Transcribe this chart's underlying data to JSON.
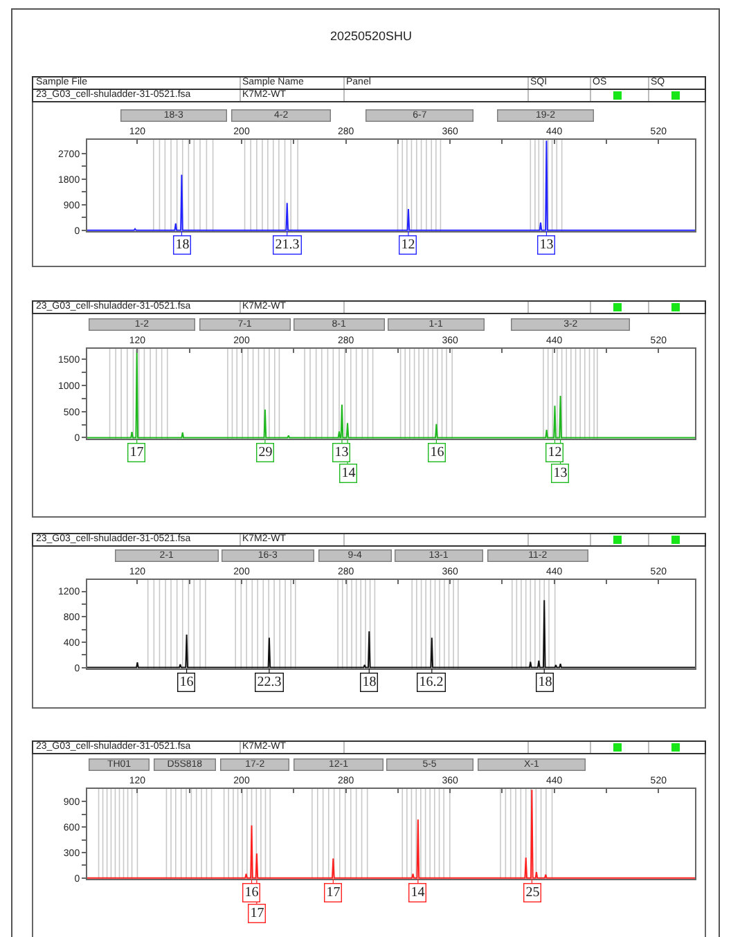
{
  "chart_data": [
    {
      "type": "line",
      "title": "20250520SHU",
      "annotations": [
        "23_G03_cell-shuladder-31-0521.fsa",
        "K7M2-WT",
        "18-3",
        "4-2",
        "6-7",
        "19-2",
        "Sample File",
        "Sample Name",
        "Panel",
        "SQI",
        "OS",
        "SQ",
        {
          "text": "18",
          "x": 154.0
        },
        {
          "text": "21.3",
          "x": 234.9
        },
        {
          "text": "12",
          "x": 328.0
        },
        {
          "text": "13",
          "x": 434.0
        }
      ],
      "xlim": [
        81.5,
        548
      ],
      "xticks": [
        120,
        {
          "value": 160,
          "label": null
        },
        200,
        {
          "value": 240,
          "label": null
        },
        280,
        {
          "value": 320,
          "label": null
        },
        360,
        {
          "value": 400,
          "label": null
        },
        440,
        {
          "value": 480,
          "label": null
        },
        520
      ],
      "ylim": [
        -30,
        3180
      ],
      "yticks": [
        0,
        {
          "value": 450,
          "label": null
        },
        900,
        {
          "value": 1350,
          "label": null
        },
        1800,
        {
          "value": 2250,
          "label": null
        },
        2700
      ],
      "series": [
        {
          "color": "#2424ff",
          "x": [
            81.5,
            117.5,
            118.2,
            119,
            148.7,
            149.4,
            150.1,
            153.3,
            154.0,
            154.7,
            234.2,
            234.9,
            235.6,
            327.3,
            328.0,
            328.7,
            428.8,
            429.5,
            430.2,
            433.3,
            434.0,
            434.7,
            548
          ],
          "values": [
            0,
            0,
            50,
            0,
            0,
            240,
            0,
            0,
            1950,
            0,
            0,
            960,
            0,
            0,
            750,
            0,
            0,
            270,
            0,
            0,
            3150,
            0,
            0
          ]
        }
      ],
      "ref_lines": [
        {
          "axis": "x",
          "value": 132.4,
          "color": "#c8c8c8"
        },
        {
          "axis": "x",
          "value": 137,
          "color": "#c8c8c8"
        },
        {
          "axis": "x",
          "value": 141.2,
          "color": "#c8c8c8"
        },
        {
          "axis": "x",
          "value": 145.8,
          "color": "#c8c8c8"
        },
        {
          "axis": "x",
          "value": 150.4,
          "color": "#c8c8c8"
        },
        {
          "axis": "x",
          "value": 154.7,
          "color": "#c8c8c8"
        },
        {
          "axis": "x",
          "value": 159.3,
          "color": "#c8c8c8"
        },
        {
          "axis": "x",
          "value": 163.5,
          "color": "#c8c8c8"
        },
        {
          "axis": "x",
          "value": 168.1,
          "color": "#c8c8c8"
        },
        {
          "axis": "x",
          "value": 173.1,
          "color": "#c8c8c8"
        },
        {
          "axis": "x",
          "value": 178,
          "color": "#c8c8c8"
        },
        {
          "axis": "x",
          "value": 202.4,
          "color": "#c8c8c8"
        },
        {
          "axis": "x",
          "value": 207,
          "color": "#c8c8c8"
        },
        {
          "axis": "x",
          "value": 211.6,
          "color": "#c8c8c8"
        },
        {
          "axis": "x",
          "value": 215.9,
          "color": "#c8c8c8"
        },
        {
          "axis": "x",
          "value": 220.1,
          "color": "#c8c8c8"
        },
        {
          "axis": "x",
          "value": 224.3,
          "color": "#c8c8c8"
        },
        {
          "axis": "x",
          "value": 228.6,
          "color": "#c8c8c8"
        },
        {
          "axis": "x",
          "value": 233.2,
          "color": "#c8c8c8"
        },
        {
          "axis": "x",
          "value": 237.8,
          "color": "#c8c8c8"
        },
        {
          "axis": "x",
          "value": 243.1,
          "color": "#c8c8c8"
        },
        {
          "axis": "x",
          "value": 319.8,
          "color": "#c8c8c8"
        },
        {
          "axis": "x",
          "value": 323.4,
          "color": "#c8c8c8"
        },
        {
          "axis": "x",
          "value": 326.9,
          "color": "#c8c8c8"
        },
        {
          "axis": "x",
          "value": 330.4,
          "color": "#c8c8c8"
        },
        {
          "axis": "x",
          "value": 334.3,
          "color": "#c8c8c8"
        },
        {
          "axis": "x",
          "value": 337.9,
          "color": "#c8c8c8"
        },
        {
          "axis": "x",
          "value": 341.8,
          "color": "#c8c8c8"
        },
        {
          "axis": "x",
          "value": 345.7,
          "color": "#c8c8c8"
        },
        {
          "axis": "x",
          "value": 349.2,
          "color": "#c8c8c8"
        },
        {
          "axis": "x",
          "value": 352.7,
          "color": "#c8c8c8"
        },
        {
          "axis": "x",
          "value": 421.7,
          "color": "#c8c8c8"
        },
        {
          "axis": "x",
          "value": 425.2,
          "color": "#c8c8c8"
        },
        {
          "axis": "x",
          "value": 428.1,
          "color": "#c8c8c8"
        },
        {
          "axis": "x",
          "value": 431.6,
          "color": "#c8c8c8"
        },
        {
          "axis": "x",
          "value": 435.2,
          "color": "#c8c8c8"
        },
        {
          "axis": "x",
          "value": 438.3,
          "color": "#c8c8c8"
        },
        {
          "axis": "x",
          "value": 441.9,
          "color": "#c8c8c8"
        },
        {
          "axis": "x",
          "value": 445.8,
          "color": "#c8c8c8"
        }
      ]
    },
    {
      "type": "line",
      "annotations": [
        "23_G03_cell-shuladder-31-0521.fsa",
        "K7M2-WT",
        "1-2",
        "7-1",
        "8-1",
        "1-1",
        "3-2",
        {
          "text": "17",
          "x": 119.6
        },
        {
          "text": "29",
          "x": 218.0
        },
        {
          "text": "13",
          "x": 277.0
        },
        {
          "text": "14",
          "x": 281.3
        },
        {
          "text": "16",
          "x": 349.5
        },
        {
          "text": "12",
          "x": 440.4
        },
        {
          "text": "13",
          "x": 444.7
        }
      ],
      "xlim": [
        81.5,
        548
      ],
      "xticks": [
        120,
        {
          "value": 160,
          "label": null
        },
        200,
        {
          "value": 240,
          "label": null
        },
        280,
        {
          "value": 320,
          "label": null
        },
        360,
        {
          "value": 400,
          "label": null
        },
        440,
        {
          "value": 480,
          "label": null
        },
        520
      ],
      "ylim": [
        -20,
        1700
      ],
      "yticks": [
        0,
        {
          "value": 250,
          "label": null
        },
        500,
        {
          "value": 750,
          "label": null
        },
        1000,
        {
          "value": 1250,
          "label": null
        },
        1500
      ],
      "series": [
        {
          "color": "#1fb81f",
          "x": [
            81.5,
            115.1,
            115.8,
            116.5,
            118.9,
            119.6,
            120.3,
            154.0,
            154.7,
            155.4,
            217.3,
            218.0,
            218.7,
            235.3,
            236.0,
            236.7,
            274.2,
            274.9,
            275.6,
            276.3,
            277.0,
            277.7,
            280.6,
            281.3,
            282.0,
            348.8,
            349.5,
            350.2,
            433.4,
            434.1,
            434.8,
            439.7,
            440.4,
            441.1,
            444.0,
            444.7,
            445.4,
            548
          ],
          "values": [
            0,
            0,
            110,
            0,
            0,
            1680,
            0,
            0,
            100,
            0,
            0,
            540,
            0,
            0,
            40,
            0,
            0,
            120,
            0,
            0,
            630,
            0,
            0,
            280,
            0,
            0,
            260,
            0,
            0,
            150,
            0,
            0,
            610,
            0,
            0,
            800,
            0,
            0
          ]
        }
      ],
      "ref_lines": [
        {
          "axis": "x",
          "value": 98.8,
          "color": "#c8c8c8"
        },
        {
          "axis": "x",
          "value": 103.4,
          "color": "#c8c8c8"
        },
        {
          "axis": "x",
          "value": 107.6,
          "color": "#c8c8c8"
        },
        {
          "axis": "x",
          "value": 112.2,
          "color": "#c8c8c8"
        },
        {
          "axis": "x",
          "value": 116.8,
          "color": "#c8c8c8"
        },
        {
          "axis": "x",
          "value": 121.1,
          "color": "#c8c8c8"
        },
        {
          "axis": "x",
          "value": 125.3,
          "color": "#c8c8c8"
        },
        {
          "axis": "x",
          "value": 129.9,
          "color": "#c8c8c8"
        },
        {
          "axis": "x",
          "value": 134.5,
          "color": "#c8c8c8"
        },
        {
          "axis": "x",
          "value": 138.7,
          "color": "#c8c8c8"
        },
        {
          "axis": "x",
          "value": 143,
          "color": "#c8c8c8"
        },
        {
          "axis": "x",
          "value": 189.3,
          "color": "#c8c8c8"
        },
        {
          "axis": "x",
          "value": 192.8,
          "color": "#c8c8c8"
        },
        {
          "axis": "x",
          "value": 196.4,
          "color": "#c8c8c8"
        },
        {
          "axis": "x",
          "value": 200.6,
          "color": "#c8c8c8"
        },
        {
          "axis": "x",
          "value": 204.9,
          "color": "#c8c8c8"
        },
        {
          "axis": "x",
          "value": 208.8,
          "color": "#c8c8c8"
        },
        {
          "axis": "x",
          "value": 213,
          "color": "#c8c8c8"
        },
        {
          "axis": "x",
          "value": 217.3,
          "color": "#c8c8c8"
        },
        {
          "axis": "x",
          "value": 221.2,
          "color": "#c8c8c8"
        },
        {
          "axis": "x",
          "value": 225.4,
          "color": "#c8c8c8"
        },
        {
          "axis": "x",
          "value": 228.9,
          "color": "#c8c8c8"
        },
        {
          "axis": "x",
          "value": 248.4,
          "color": "#c8c8c8"
        },
        {
          "axis": "x",
          "value": 252.6,
          "color": "#c8c8c8"
        },
        {
          "axis": "x",
          "value": 257.2,
          "color": "#c8c8c8"
        },
        {
          "axis": "x",
          "value": 261.5,
          "color": "#c8c8c8"
        },
        {
          "axis": "x",
          "value": 266.1,
          "color": "#c8c8c8"
        },
        {
          "axis": "x",
          "value": 270.3,
          "color": "#c8c8c8"
        },
        {
          "axis": "x",
          "value": 274.9,
          "color": "#c8c8c8"
        },
        {
          "axis": "x",
          "value": 279.2,
          "color": "#c8c8c8"
        },
        {
          "axis": "x",
          "value": 283.8,
          "color": "#c8c8c8"
        },
        {
          "axis": "x",
          "value": 288,
          "color": "#c8c8c8"
        },
        {
          "axis": "x",
          "value": 292.6,
          "color": "#c8c8c8"
        },
        {
          "axis": "x",
          "value": 296.9,
          "color": "#c8c8c8"
        },
        {
          "axis": "x",
          "value": 300.7,
          "color": "#c8c8c8"
        },
        {
          "axis": "x",
          "value": 322,
          "color": "#c8c8c8"
        },
        {
          "axis": "x",
          "value": 325.5,
          "color": "#c8c8c8"
        },
        {
          "axis": "x",
          "value": 329,
          "color": "#c8c8c8"
        },
        {
          "axis": "x",
          "value": 332.6,
          "color": "#c8c8c8"
        },
        {
          "axis": "x",
          "value": 336.1,
          "color": "#c8c8c8"
        },
        {
          "axis": "x",
          "value": 339.7,
          "color": "#c8c8c8"
        },
        {
          "axis": "x",
          "value": 343.2,
          "color": "#c8c8c8"
        },
        {
          "axis": "x",
          "value": 346.7,
          "color": "#c8c8c8"
        },
        {
          "axis": "x",
          "value": 350.3,
          "color": "#c8c8c8"
        },
        {
          "axis": "x",
          "value": 353.8,
          "color": "#c8c8c8"
        },
        {
          "axis": "x",
          "value": 357.3,
          "color": "#c8c8c8"
        },
        {
          "axis": "x",
          "value": 361.6,
          "color": "#c8c8c8"
        },
        {
          "axis": "x",
          "value": 431.6,
          "color": "#c8c8c8"
        },
        {
          "axis": "x",
          "value": 435.2,
          "color": "#c8c8c8"
        },
        {
          "axis": "x",
          "value": 438.7,
          "color": "#c8c8c8"
        },
        {
          "axis": "x",
          "value": 442.2,
          "color": "#c8c8c8"
        },
        {
          "axis": "x",
          "value": 445.8,
          "color": "#c8c8c8"
        },
        {
          "axis": "x",
          "value": 449.3,
          "color": "#c8c8c8"
        },
        {
          "axis": "x",
          "value": 452.8,
          "color": "#c8c8c8"
        },
        {
          "axis": "x",
          "value": 456.4,
          "color": "#c8c8c8"
        },
        {
          "axis": "x",
          "value": 459.9,
          "color": "#c8c8c8"
        },
        {
          "axis": "x",
          "value": 463.4,
          "color": "#c8c8c8"
        },
        {
          "axis": "x",
          "value": 467,
          "color": "#c8c8c8"
        },
        {
          "axis": "x",
          "value": 470.5,
          "color": "#c8c8c8"
        },
        {
          "axis": "x",
          "value": 473,
          "color": "#c8c8c8"
        }
      ]
    },
    {
      "type": "line",
      "annotations": [
        "23_G03_cell-shuladder-31-0521.fsa",
        "K7M2-WT",
        "2-1",
        "16-3",
        "9-4",
        "13-1",
        "11-2",
        {
          "text": "16",
          "x": 157.8
        },
        {
          "text": "22.3",
          "x": 221.2
        },
        {
          "text": "18",
          "x": 297.9
        },
        {
          "text": "16.2",
          "x": 346.0
        },
        {
          "text": "18",
          "x": 432.3
        }
      ],
      "xlim": [
        81.5,
        548
      ],
      "xticks": [
        120,
        {
          "value": 160,
          "label": null
        },
        200,
        {
          "value": 240,
          "label": null
        },
        280,
        {
          "value": 320,
          "label": null
        },
        360,
        {
          "value": 400,
          "label": null
        },
        440,
        {
          "value": 480,
          "label": null
        },
        520
      ],
      "ylim": [
        -15,
        1380
      ],
      "yticks": [
        0,
        {
          "value": 200,
          "label": null
        },
        400,
        {
          "value": 600,
          "label": null
        },
        800,
        {
          "value": 1000,
          "label": null
        },
        1200
      ],
      "series": [
        {
          "color": "#111111",
          "x": [
            81.5,
            119.3,
            120.0,
            120.7,
            152.2,
            152.9,
            153.6,
            157.1,
            157.8,
            158.5,
            220.5,
            221.2,
            221.9,
            293.7,
            294.4,
            295.1,
            297.2,
            297.9,
            298.6,
            345.3,
            346.0,
            346.7,
            421.0,
            421.7,
            422.4,
            427.4,
            428.1,
            428.8,
            431.6,
            432.3,
            433.0,
            440.5,
            441.2,
            441.9,
            444.0,
            444.7,
            445.4,
            548
          ],
          "values": [
            0,
            0,
            80,
            0,
            0,
            50,
            0,
            0,
            520,
            0,
            0,
            470,
            0,
            0,
            40,
            0,
            0,
            570,
            0,
            0,
            470,
            0,
            0,
            90,
            0,
            0,
            110,
            0,
            0,
            1060,
            0,
            0,
            40,
            0,
            0,
            60,
            0,
            0
          ]
        }
      ],
      "ref_lines": [
        {
          "axis": "x",
          "value": 128.1,
          "color": "#c8c8c8"
        },
        {
          "axis": "x",
          "value": 132.7,
          "color": "#c8c8c8"
        },
        {
          "axis": "x",
          "value": 137,
          "color": "#c8c8c8"
        },
        {
          "axis": "x",
          "value": 141.6,
          "color": "#c8c8c8"
        },
        {
          "axis": "x",
          "value": 145.8,
          "color": "#c8c8c8"
        },
        {
          "axis": "x",
          "value": 150.4,
          "color": "#c8c8c8"
        },
        {
          "axis": "x",
          "value": 154.7,
          "color": "#c8c8c8"
        },
        {
          "axis": "x",
          "value": 159.3,
          "color": "#c8c8c8"
        },
        {
          "axis": "x",
          "value": 163.5,
          "color": "#c8c8c8"
        },
        {
          "axis": "x",
          "value": 168.1,
          "color": "#c8c8c8"
        },
        {
          "axis": "x",
          "value": 172.3,
          "color": "#c8c8c8"
        },
        {
          "axis": "x",
          "value": 195.3,
          "color": "#c8c8c8"
        },
        {
          "axis": "x",
          "value": 199.6,
          "color": "#c8c8c8"
        },
        {
          "axis": "x",
          "value": 203.8,
          "color": "#c8c8c8"
        },
        {
          "axis": "x",
          "value": 208.1,
          "color": "#c8c8c8"
        },
        {
          "axis": "x",
          "value": 212.3,
          "color": "#c8c8c8"
        },
        {
          "axis": "x",
          "value": 216.6,
          "color": "#c8c8c8"
        },
        {
          "axis": "x",
          "value": 220.8,
          "color": "#c8c8c8"
        },
        {
          "axis": "x",
          "value": 225,
          "color": "#c8c8c8"
        },
        {
          "axis": "x",
          "value": 229.3,
          "color": "#c8c8c8"
        },
        {
          "axis": "x",
          "value": 233.5,
          "color": "#c8c8c8"
        },
        {
          "axis": "x",
          "value": 237.8,
          "color": "#c8c8c8"
        },
        {
          "axis": "x",
          "value": 241.3,
          "color": "#c8c8c8"
        },
        {
          "axis": "x",
          "value": 273.9,
          "color": "#c8c8c8"
        },
        {
          "axis": "x",
          "value": 277.4,
          "color": "#c8c8c8"
        },
        {
          "axis": "x",
          "value": 280.9,
          "color": "#c8c8c8"
        },
        {
          "axis": "x",
          "value": 284.5,
          "color": "#c8c8c8"
        },
        {
          "axis": "x",
          "value": 288,
          "color": "#c8c8c8"
        },
        {
          "axis": "x",
          "value": 291.5,
          "color": "#c8c8c8"
        },
        {
          "axis": "x",
          "value": 295.1,
          "color": "#c8c8c8"
        },
        {
          "axis": "x",
          "value": 298.6,
          "color": "#c8c8c8"
        },
        {
          "axis": "x",
          "value": 302.2,
          "color": "#c8c8c8"
        },
        {
          "axis": "x",
          "value": 330.8,
          "color": "#c8c8c8"
        },
        {
          "axis": "x",
          "value": 334.3,
          "color": "#c8c8c8"
        },
        {
          "axis": "x",
          "value": 337.9,
          "color": "#c8c8c8"
        },
        {
          "axis": "x",
          "value": 341.4,
          "color": "#c8c8c8"
        },
        {
          "axis": "x",
          "value": 345,
          "color": "#c8c8c8"
        },
        {
          "axis": "x",
          "value": 348.5,
          "color": "#c8c8c8"
        },
        {
          "axis": "x",
          "value": 352,
          "color": "#c8c8c8"
        },
        {
          "axis": "x",
          "value": 355.6,
          "color": "#c8c8c8"
        },
        {
          "axis": "x",
          "value": 359.1,
          "color": "#c8c8c8"
        },
        {
          "axis": "x",
          "value": 362.6,
          "color": "#c8c8c8"
        },
        {
          "axis": "x",
          "value": 366.2,
          "color": "#c8c8c8"
        },
        {
          "axis": "x",
          "value": 407.6,
          "color": "#c8c8c8"
        },
        {
          "axis": "x",
          "value": 411.1,
          "color": "#c8c8c8"
        },
        {
          "axis": "x",
          "value": 414.6,
          "color": "#c8c8c8"
        },
        {
          "axis": "x",
          "value": 418.2,
          "color": "#c8c8c8"
        },
        {
          "axis": "x",
          "value": 421.7,
          "color": "#c8c8c8"
        },
        {
          "axis": "x",
          "value": 425.2,
          "color": "#c8c8c8"
        },
        {
          "axis": "x",
          "value": 428.8,
          "color": "#c8c8c8"
        },
        {
          "axis": "x",
          "value": 432.3,
          "color": "#c8c8c8"
        },
        {
          "axis": "x",
          "value": 435.9,
          "color": "#c8c8c8"
        },
        {
          "axis": "x",
          "value": 440.5,
          "color": "#c8c8c8"
        }
      ]
    },
    {
      "type": "line",
      "annotations": [
        "23_G03_cell-shuladder-31-0521.fsa",
        "K7M2-WT",
        "TH01",
        "D5S818",
        "17-2",
        "12-1",
        "5-5",
        "X-1",
        {
          "text": "16",
          "x": 207.7
        },
        {
          "text": "17",
          "x": 211.6
        },
        {
          "text": "17",
          "x": 270.3
        },
        {
          "text": "14",
          "x": 335.4
        },
        {
          "text": "25",
          "x": 422.8
        }
      ],
      "xlim": [
        81.5,
        548
      ],
      "xticks": [
        120,
        {
          "value": 160,
          "label": null
        },
        200,
        {
          "value": 240,
          "label": null
        },
        280,
        {
          "value": 320,
          "label": null
        },
        360,
        {
          "value": 400,
          "label": null
        },
        440,
        {
          "value": 480,
          "label": null
        },
        520
      ],
      "ylim": [
        -10,
        1050
      ],
      "yticks": [
        0,
        {
          "value": 150,
          "label": null
        },
        300,
        {
          "value": 450,
          "label": null
        },
        600,
        {
          "value": 750,
          "label": null
        },
        900
      ],
      "series": [
        {
          "color": "#ff2020",
          "x": [
            81.5,
            202.8,
            203.5,
            204.2,
            207.0,
            207.7,
            208.4,
            210.9,
            211.6,
            212.3,
            269.6,
            270.3,
            271.0,
            330.8,
            331.5,
            332.2,
            334.7,
            335.4,
            336.1,
            417.5,
            418.2,
            418.9,
            422.1,
            422.8,
            423.5,
            425.6,
            426.3,
            427.0,
            432.7,
            433.4,
            434.1,
            548
          ],
          "values": [
            0,
            0,
            50,
            0,
            0,
            620,
            0,
            0,
            290,
            0,
            0,
            230,
            0,
            0,
            50,
            0,
            0,
            690,
            0,
            0,
            240,
            0,
            0,
            1040,
            0,
            0,
            70,
            0,
            0,
            40,
            0,
            0
          ]
        }
      ],
      "ref_lines": [
        {
          "axis": "x",
          "value": 90.3,
          "color": "#c8c8c8"
        },
        {
          "axis": "x",
          "value": 93.5,
          "color": "#c8c8c8"
        },
        {
          "axis": "x",
          "value": 96.7,
          "color": "#c8c8c8"
        },
        {
          "axis": "x",
          "value": 99.8,
          "color": "#c8c8c8"
        },
        {
          "axis": "x",
          "value": 103,
          "color": "#c8c8c8"
        },
        {
          "axis": "x",
          "value": 106.2,
          "color": "#c8c8c8"
        },
        {
          "axis": "x",
          "value": 109.4,
          "color": "#c8c8c8"
        },
        {
          "axis": "x",
          "value": 112.6,
          "color": "#c8c8c8"
        },
        {
          "axis": "x",
          "value": 115.8,
          "color": "#c8c8c8"
        },
        {
          "axis": "x",
          "value": 120,
          "color": "#c8c8c8"
        },
        {
          "axis": "x",
          "value": 142.3,
          "color": "#c8c8c8"
        },
        {
          "axis": "x",
          "value": 145.8,
          "color": "#c8c8c8"
        },
        {
          "axis": "x",
          "value": 149.4,
          "color": "#c8c8c8"
        },
        {
          "axis": "x",
          "value": 153.6,
          "color": "#c8c8c8"
        },
        {
          "axis": "x",
          "value": 157.5,
          "color": "#c8c8c8"
        },
        {
          "axis": "x",
          "value": 161.4,
          "color": "#c8c8c8"
        },
        {
          "axis": "x",
          "value": 165.3,
          "color": "#c8c8c8"
        },
        {
          "axis": "x",
          "value": 169.2,
          "color": "#c8c8c8"
        },
        {
          "axis": "x",
          "value": 173.1,
          "color": "#c8c8c8"
        },
        {
          "axis": "x",
          "value": 176.9,
          "color": "#c8c8c8"
        },
        {
          "axis": "x",
          "value": 186.5,
          "color": "#c8c8c8"
        },
        {
          "axis": "x",
          "value": 190,
          "color": "#c8c8c8"
        },
        {
          "axis": "x",
          "value": 193.6,
          "color": "#c8c8c8"
        },
        {
          "axis": "x",
          "value": 197.1,
          "color": "#c8c8c8"
        },
        {
          "axis": "x",
          "value": 200.6,
          "color": "#c8c8c8"
        },
        {
          "axis": "x",
          "value": 204.2,
          "color": "#c8c8c8"
        },
        {
          "axis": "x",
          "value": 207.7,
          "color": "#c8c8c8"
        },
        {
          "axis": "x",
          "value": 211.3,
          "color": "#c8c8c8"
        },
        {
          "axis": "x",
          "value": 214.8,
          "color": "#c8c8c8"
        },
        {
          "axis": "x",
          "value": 218.3,
          "color": "#c8c8c8"
        },
        {
          "axis": "x",
          "value": 221.9,
          "color": "#c8c8c8"
        },
        {
          "axis": "x",
          "value": 254.1,
          "color": "#c8c8c8"
        },
        {
          "axis": "x",
          "value": 258.3,
          "color": "#c8c8c8"
        },
        {
          "axis": "x",
          "value": 262.5,
          "color": "#c8c8c8"
        },
        {
          "axis": "x",
          "value": 266.8,
          "color": "#c8c8c8"
        },
        {
          "axis": "x",
          "value": 271,
          "color": "#c8c8c8"
        },
        {
          "axis": "x",
          "value": 275.3,
          "color": "#c8c8c8"
        },
        {
          "axis": "x",
          "value": 279.5,
          "color": "#c8c8c8"
        },
        {
          "axis": "x",
          "value": 283.8,
          "color": "#c8c8c8"
        },
        {
          "axis": "x",
          "value": 288,
          "color": "#c8c8c8"
        },
        {
          "axis": "x",
          "value": 292.2,
          "color": "#c8c8c8"
        },
        {
          "axis": "x",
          "value": 296.5,
          "color": "#c8c8c8"
        },
        {
          "axis": "x",
          "value": 323.4,
          "color": "#c8c8c8"
        },
        {
          "axis": "x",
          "value": 326.9,
          "color": "#c8c8c8"
        },
        {
          "axis": "x",
          "value": 330.4,
          "color": "#c8c8c8"
        },
        {
          "axis": "x",
          "value": 334,
          "color": "#c8c8c8"
        },
        {
          "axis": "x",
          "value": 337.5,
          "color": "#c8c8c8"
        },
        {
          "axis": "x",
          "value": 341.1,
          "color": "#c8c8c8"
        },
        {
          "axis": "x",
          "value": 344.6,
          "color": "#c8c8c8"
        },
        {
          "axis": "x",
          "value": 348.1,
          "color": "#c8c8c8"
        },
        {
          "axis": "x",
          "value": 351.7,
          "color": "#c8c8c8"
        },
        {
          "axis": "x",
          "value": 355.2,
          "color": "#c8c8c8"
        },
        {
          "axis": "x",
          "value": 359.8,
          "color": "#c8c8c8"
        },
        {
          "axis": "x",
          "value": 398.7,
          "color": "#c8c8c8"
        },
        {
          "axis": "x",
          "value": 402.6,
          "color": "#c8c8c8"
        },
        {
          "axis": "x",
          "value": 406.5,
          "color": "#c8c8c8"
        },
        {
          "axis": "x",
          "value": 410.4,
          "color": "#c8c8c8"
        },
        {
          "axis": "x",
          "value": 414.3,
          "color": "#c8c8c8"
        },
        {
          "axis": "x",
          "value": 418.2,
          "color": "#c8c8c8"
        },
        {
          "axis": "x",
          "value": 422.1,
          "color": "#c8c8c8"
        },
        {
          "axis": "x",
          "value": 426,
          "color": "#c8c8c8"
        },
        {
          "axis": "x",
          "value": 429.8,
          "color": "#c8c8c8"
        },
        {
          "axis": "x",
          "value": 433.7,
          "color": "#c8c8c8"
        },
        {
          "axis": "x",
          "value": 438.3,
          "color": "#c8c8c8"
        }
      ]
    }
  ]
}
